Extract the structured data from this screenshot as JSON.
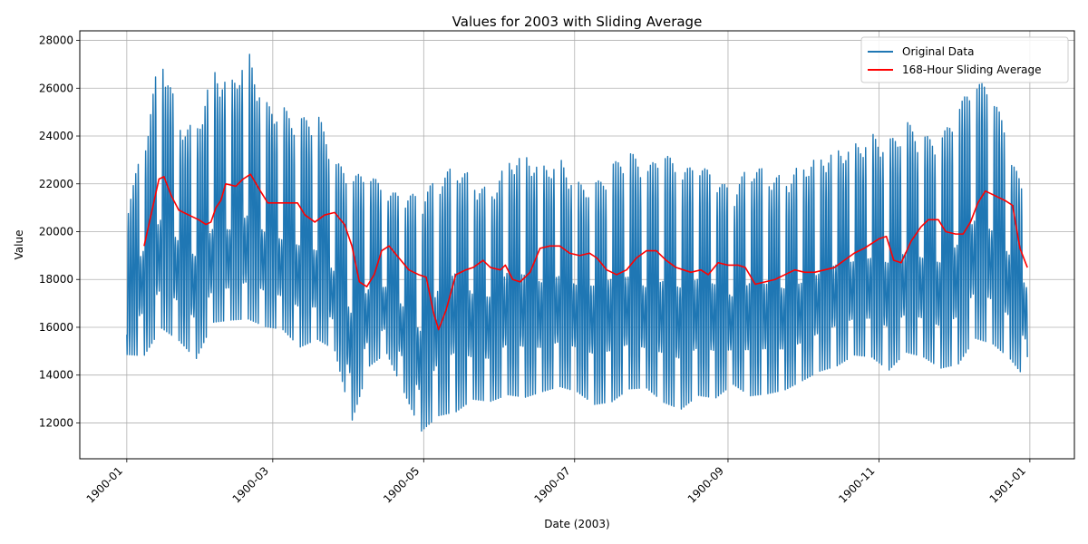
{
  "chart_data": {
    "type": "line",
    "title": "Values for 2003 with Sliding Average",
    "xlabel": "Date (2003)",
    "ylabel": "Value",
    "x_ticks": [
      "1900-01",
      "1900-03",
      "1900-05",
      "1900-07",
      "1900-09",
      "1900-11",
      "1901-01"
    ],
    "y_ticks": [
      "12000",
      "14000",
      "16000",
      "18000",
      "20000",
      "22000",
      "24000",
      "26000",
      "28000"
    ],
    "xlim": [
      "1899-12-13",
      "1901-01-19"
    ],
    "ylim": [
      10500,
      28400
    ],
    "grid": true,
    "legend_position": "top-right",
    "series": [
      {
        "name": "Original Data",
        "color": "#1f77b4",
        "envelope": {
          "x": [
            "1900-01-01",
            "1900-01-08",
            "1900-01-15",
            "1900-01-22",
            "1900-01-29",
            "1900-02-05",
            "1900-02-12",
            "1900-02-19",
            "1900-02-26",
            "1900-03-05",
            "1900-03-12",
            "1900-03-19",
            "1900-03-26",
            "1900-04-02",
            "1900-04-09",
            "1900-04-16",
            "1900-04-23",
            "1900-04-30",
            "1900-05-07",
            "1900-05-14",
            "1900-05-21",
            "1900-05-28",
            "1900-06-04",
            "1900-06-11",
            "1900-06-18",
            "1900-06-25",
            "1900-07-02",
            "1900-07-09",
            "1900-07-16",
            "1900-07-23",
            "1900-07-30",
            "1900-08-06",
            "1900-08-13",
            "1900-08-20",
            "1900-08-27",
            "1900-09-03",
            "1900-09-10",
            "1900-09-17",
            "1900-09-24",
            "1900-10-01",
            "1900-10-08",
            "1900-10-15",
            "1900-10-22",
            "1900-10-29",
            "1900-11-05",
            "1900-11-12",
            "1900-11-19",
            "1900-11-26",
            "1900-12-03",
            "1900-12-10",
            "1900-12-17",
            "1900-12-24",
            "1900-12-31"
          ],
          "high": [
            21000,
            23500,
            27600,
            24500,
            24200,
            26700,
            26100,
            27400,
            25200,
            25000,
            24500,
            24800,
            22800,
            22100,
            22300,
            21500,
            21400,
            21300,
            22100,
            22600,
            22100,
            21500,
            22900,
            23100,
            22600,
            22900,
            21900,
            21800,
            22600,
            23200,
            22400,
            23200,
            22300,
            22700,
            22100,
            21500,
            22700,
            22300,
            22100,
            22700,
            23000,
            23300,
            23500,
            23900,
            23600,
            24400,
            23800,
            23700,
            25000,
            26100,
            25700,
            23300,
            20900
          ],
          "low": [
            14600,
            14400,
            15600,
            15100,
            14300,
            15900,
            16000,
            16000,
            15700,
            15600,
            14800,
            15200,
            14800,
            11700,
            14100,
            14700,
            13000,
            11300,
            11800,
            11900,
            12600,
            12500,
            12700,
            12600,
            12900,
            13100,
            12900,
            12300,
            12400,
            13000,
            13100,
            12400,
            12100,
            12700,
            12600,
            13300,
            12700,
            12800,
            13000,
            13400,
            13800,
            14000,
            14500,
            14400,
            13800,
            14600,
            14400,
            13900,
            14000,
            15100,
            14900,
            14300,
            13400
          ],
          "mid": [
            17200,
            18500,
            19300,
            18700,
            18000,
            19000,
            19000,
            19500,
            19000,
            18700,
            18500,
            18200,
            17500,
            15500,
            16800,
            17000,
            16000,
            14800,
            16800,
            17500,
            16500,
            16500,
            17500,
            17300,
            17000,
            17300,
            17000,
            17000,
            17200,
            17200,
            16800,
            17000,
            16800,
            17200,
            17000,
            16500,
            17000,
            17000,
            16800,
            17000,
            17400,
            17800,
            17900,
            18000,
            17800,
            18200,
            18000,
            17800,
            18500,
            19500,
            19000,
            18200,
            17000
          ]
        }
      },
      {
        "name": "168-Hour Sliding Average",
        "color": "#ff0000",
        "x": [
          "1900-01-08",
          "1900-01-11",
          "1900-01-14",
          "1900-01-16",
          "1900-01-19",
          "1900-01-22",
          "1900-01-26",
          "1900-01-30",
          "1900-02-02",
          "1900-02-04",
          "1900-02-06",
          "1900-02-08",
          "1900-02-10",
          "1900-02-14",
          "1900-02-17",
          "1900-02-20",
          "1900-02-24",
          "1900-02-27",
          "1900-03-02",
          "1900-03-07",
          "1900-03-11",
          "1900-03-14",
          "1900-03-18",
          "1900-03-22",
          "1900-03-26",
          "1900-03-30",
          "1900-04-02",
          "1900-04-05",
          "1900-04-08",
          "1900-04-11",
          "1900-04-14",
          "1900-04-17",
          "1900-04-21",
          "1900-04-25",
          "1900-04-29",
          "1900-05-02",
          "1900-05-05",
          "1900-05-07",
          "1900-05-10",
          "1900-05-14",
          "1900-05-18",
          "1900-05-21",
          "1900-05-25",
          "1900-05-28",
          "1900-06-01",
          "1900-06-03",
          "1900-06-06",
          "1900-06-09",
          "1900-06-13",
          "1900-06-17",
          "1900-06-21",
          "1900-06-25",
          "1900-06-29",
          "1900-07-03",
          "1900-07-07",
          "1900-07-10",
          "1900-07-14",
          "1900-07-18",
          "1900-07-22",
          "1900-07-26",
          "1900-07-30",
          "1900-08-03",
          "1900-08-07",
          "1900-08-11",
          "1900-08-14",
          "1900-08-17",
          "1900-08-21",
          "1900-08-24",
          "1900-08-28",
          "1900-09-01",
          "1900-09-05",
          "1900-09-08",
          "1900-09-12",
          "1900-09-16",
          "1900-09-20",
          "1900-09-24",
          "1900-09-28",
          "1900-10-02",
          "1900-10-06",
          "1900-10-10",
          "1900-10-14",
          "1900-10-18",
          "1900-10-22",
          "1900-10-26",
          "1900-10-29",
          "1900-11-01",
          "1900-11-04",
          "1900-11-07",
          "1900-11-10",
          "1900-11-14",
          "1900-11-18",
          "1900-11-21",
          "1900-11-25",
          "1900-11-28",
          "1900-12-02",
          "1900-12-05",
          "1900-12-08",
          "1900-12-11",
          "1900-12-14",
          "1900-12-18",
          "1900-12-22",
          "1900-12-25",
          "1900-12-28",
          "1900-12-31"
        ],
        "y": [
          19400,
          20800,
          22200,
          22300,
          21500,
          20900,
          20700,
          20500,
          20300,
          20400,
          21000,
          21300,
          22000,
          21900,
          22200,
          22400,
          21700,
          21200,
          21200,
          21200,
          21200,
          20700,
          20400,
          20700,
          20800,
          20300,
          19400,
          17900,
          17700,
          18200,
          19200,
          19400,
          18900,
          18400,
          18200,
          18100,
          16600,
          15900,
          16700,
          18200,
          18400,
          18500,
          18800,
          18500,
          18400,
          18600,
          18000,
          17900,
          18300,
          19300,
          19400,
          19400,
          19100,
          19000,
          19100,
          18900,
          18400,
          18200,
          18400,
          18900,
          19200,
          19200,
          18800,
          18500,
          18400,
          18300,
          18400,
          18200,
          18700,
          18600,
          18600,
          18500,
          17800,
          17900,
          18000,
          18200,
          18400,
          18300,
          18300,
          18400,
          18500,
          18800,
          19100,
          19300,
          19500,
          19700,
          19800,
          18800,
          18700,
          19600,
          20200,
          20500,
          20500,
          20000,
          19900,
          19900,
          20400,
          21200,
          21700,
          21500,
          21300,
          21100,
          19300,
          18500
        ]
      }
    ]
  }
}
